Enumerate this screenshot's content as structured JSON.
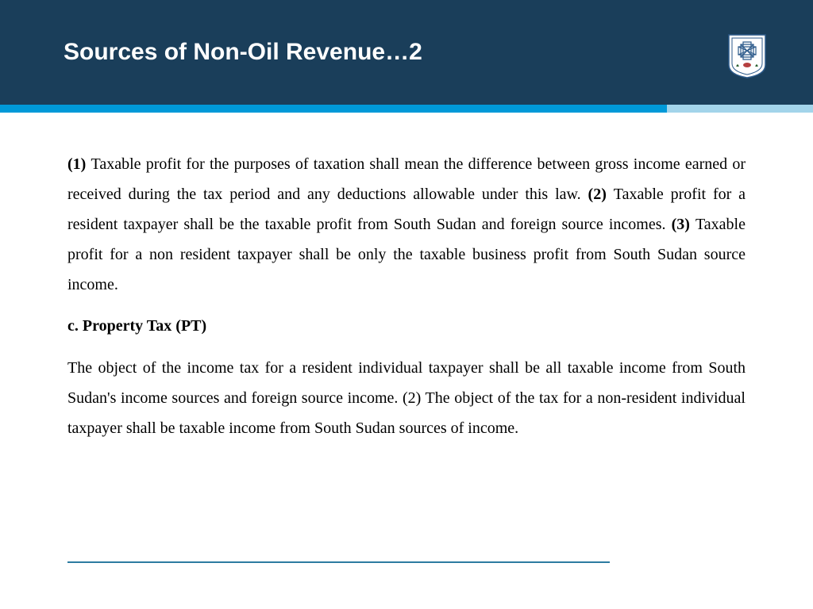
{
  "header": {
    "title": "Sources of Non-Oil Revenue…2",
    "bg_color": "#1a3e5a",
    "title_color": "#ffffff",
    "title_fontsize": 30
  },
  "stripe": {
    "dark_color": "#0099d8",
    "light_color": "#a3d4ea",
    "height": 10
  },
  "logo": {
    "shield_fill": "#ffffff",
    "shield_border": "#2c5a8a",
    "knot_color": "#2c5a8a",
    "accent_color": "#b54040"
  },
  "body": {
    "font_family": "Times New Roman",
    "font_size": 20,
    "line_height": 1.9,
    "text_color": "#000000",
    "para1_runs": [
      {
        "bold": true,
        "text": "(1) "
      },
      {
        "bold": false,
        "text": "Taxable profit for the purposes of taxation shall mean the difference between gross income earned or received during the tax period and any deductions allowable under this law. "
      },
      {
        "bold": true,
        "text": "(2) "
      },
      {
        "bold": false,
        "text": "Taxable profit for a resident taxpayer shall be the taxable profit from South Sudan and foreign source incomes. "
      },
      {
        "bold": true,
        "text": "(3) "
      },
      {
        "bold": false,
        "text": "Taxable profit for a non resident taxpayer shall be only the taxable business profit from South Sudan source income."
      }
    ],
    "subhead": "c. Property Tax (PT)",
    "para2": "The object of the income tax for a resident individual taxpayer shall be all taxable income from South Sudan's income sources and foreign source income. (2) The object of the tax for a non-resident individual taxpayer shall be taxable income from South Sudan sources of income."
  },
  "footer_line_color": "#2c7ba0"
}
